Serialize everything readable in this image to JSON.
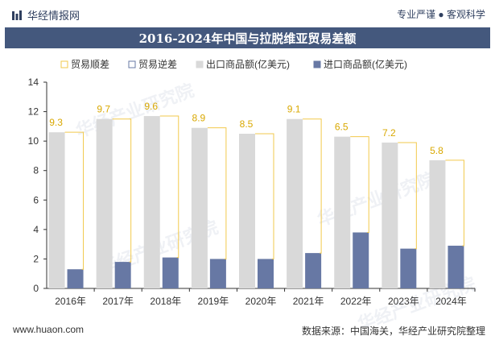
{
  "header": {
    "brand": "华经情报网",
    "tagline": "专业严谨 ● 客观科学"
  },
  "title": "2016-2024年中国与拉脱维亚贸易差额",
  "footer": {
    "website": "www.huaon.com",
    "source": "数据来源：中国海关，华经产业研究院整理"
  },
  "watermark": "华经产业研究院",
  "colors": {
    "export": "#d9d9d9",
    "import": "#6778a4",
    "surplus": "#f2c94c",
    "deficit": "#6778a4",
    "title_bg": "#44587d"
  },
  "chart_data": {
    "type": "bar",
    "categories": [
      "2016年",
      "2017年",
      "2018年",
      "2019年",
      "2020年",
      "2021年",
      "2022年",
      "2023年",
      "2024年"
    ],
    "series": [
      {
        "name": "贸易顺差",
        "values": [
          9.3,
          9.7,
          9.6,
          8.9,
          8.5,
          9.1,
          6.5,
          7.2,
          5.8
        ]
      },
      {
        "name": "贸易逆差",
        "values": [
          0,
          0,
          0,
          0,
          0,
          0,
          0,
          0,
          0
        ]
      },
      {
        "name": "出口商品额(亿美元)",
        "values": [
          10.6,
          11.5,
          11.7,
          10.9,
          10.5,
          11.5,
          10.3,
          9.9,
          8.7
        ]
      },
      {
        "name": "进口商品额(亿美元)",
        "values": [
          1.3,
          1.8,
          2.1,
          2.0,
          2.0,
          2.4,
          3.8,
          2.7,
          2.9
        ]
      }
    ],
    "data_labels": [
      "9.3",
      "9.7",
      "9.6",
      "8.9",
      "8.5",
      "9.1",
      "6.5",
      "7.2",
      "5.8"
    ],
    "ylim": [
      0,
      14
    ],
    "yticks": [
      0,
      2,
      4,
      6,
      8,
      10,
      12,
      14
    ],
    "legend_position": "top"
  }
}
